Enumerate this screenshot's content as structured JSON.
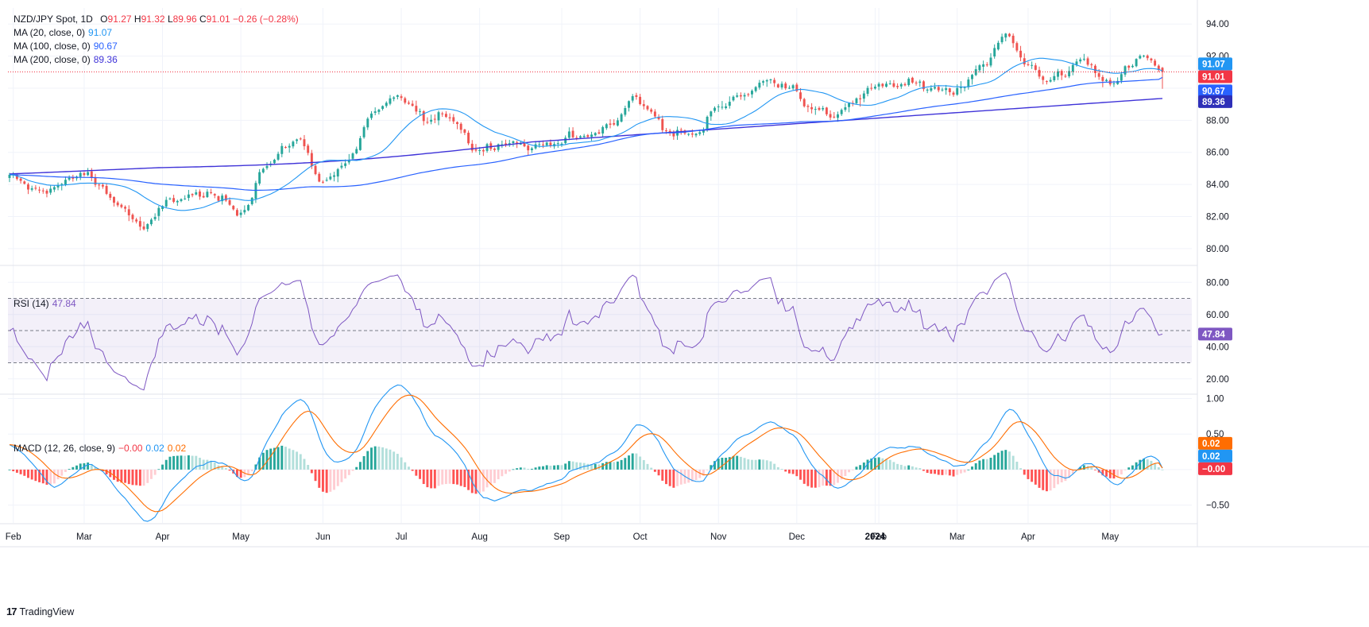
{
  "chart_data": {
    "type": "candlestick",
    "symbol_label": "NZD/JPY Spot, 1D",
    "ohlc": {
      "o_label": "O",
      "o": "91.27",
      "h_label": "H",
      "h": "91.32",
      "l_label": "L",
      "l": "89.96",
      "c_label": "C",
      "c": "91.01",
      "change": "−0.26 (−0.28%)"
    },
    "moving_averages": [
      {
        "label": "MA (20, close, 0)",
        "value": "91.07",
        "color": "#2196f3",
        "badge_color": "#2196f3"
      },
      {
        "label": "MA (100, close, 0)",
        "value": "90.67",
        "color": "#2962ff",
        "badge_color": "#2962ff"
      },
      {
        "label": "MA (200, close, 0)",
        "value": "89.36",
        "color": "#3f33d8",
        "badge_color": "#2e2fb8"
      }
    ],
    "last_price_badge": {
      "value": "91.01",
      "color": "#f23645"
    },
    "price_axis": {
      "ticks": [
        "94.00",
        "92.00",
        "88.00",
        "86.00",
        "84.00",
        "82.00",
        "80.00"
      ],
      "range": [
        79,
        95
      ]
    },
    "x_axis": {
      "ticks": [
        "Feb",
        "Mar",
        "Apr",
        "May",
        "Jun",
        "Jul",
        "Aug",
        "Sep",
        "Oct",
        "Nov",
        "Dec",
        "2024",
        "Feb",
        "Mar",
        "Apr",
        "May"
      ]
    },
    "price_anchors": [
      [
        "Jan 31",
        84.4
      ],
      [
        "Feb 10",
        83.6
      ],
      [
        "Feb 20",
        84.0
      ],
      [
        "Mar 1",
        84.6
      ],
      [
        "Mar 8",
        83.8
      ],
      [
        "Mar 15",
        82.6
      ],
      [
        "Mar 24",
        81.2
      ],
      [
        "Apr 4",
        83.1
      ],
      [
        "Apr 14",
        83.3
      ],
      [
        "Apr 24",
        83.0
      ],
      [
        "Apr 30",
        82.4
      ],
      [
        "May 10",
        85.2
      ],
      [
        "May 22",
        86.8
      ],
      [
        "Jun 1",
        84.3
      ],
      [
        "Jun 10",
        85.2
      ],
      [
        "Jun 20",
        88.3
      ],
      [
        "Jul 1",
        89.3
      ],
      [
        "Jul 12",
        87.9
      ],
      [
        "Jul 20",
        88.3
      ],
      [
        "Jul 31",
        86.2
      ],
      [
        "Aug 10",
        86.8
      ],
      [
        "Aug 22",
        86.3
      ],
      [
        "Sep 1",
        86.9
      ],
      [
        "Sep 10",
        86.8
      ],
      [
        "Sep 22",
        87.9
      ],
      [
        "Sep 29",
        89.4
      ],
      [
        "Oct 6",
        88.4
      ],
      [
        "Oct 14",
        87.2
      ],
      [
        "Oct 24",
        87.1
      ],
      [
        "Oct 31",
        88.9
      ],
      [
        "Nov 10",
        89.7
      ],
      [
        "Nov 20",
        90.4
      ],
      [
        "Nov 29",
        90.3
      ],
      [
        "Dec 7",
        88.6
      ],
      [
        "Dec 14",
        88.2
      ],
      [
        "Dec 22",
        89.2
      ],
      [
        "Dec 31",
        89.9
      ],
      [
        "Jan 10",
        90.2
      ],
      [
        "Jan 20",
        90.1
      ],
      [
        "Jan 31",
        89.9
      ],
      [
        "Feb 10",
        91.5
      ],
      [
        "Feb 20",
        93.2
      ],
      [
        "Feb 27",
        91.6
      ],
      [
        "Mar 7",
        90.7
      ],
      [
        "Mar 14",
        90.7
      ],
      [
        "Mar 20",
        91.8
      ],
      [
        "Mar 31",
        90.5
      ],
      [
        "Apr 8",
        91.2
      ],
      [
        "Apr 14",
        91.9
      ],
      [
        "Apr 21",
        91.01
      ]
    ],
    "rsi": {
      "label": "RSI (14)",
      "value": "47.84",
      "color": "#7e57c2",
      "ticks": [
        "80.00",
        "60.00",
        "40.00",
        "20.00"
      ],
      "range": [
        11,
        90
      ],
      "band": [
        30,
        70
      ],
      "mid": 50
    },
    "macd": {
      "label": "MACD (12, 26, close, 9)",
      "hist_value": "−0.00",
      "macd_value": "0.02",
      "signal_value": "0.02",
      "hist_color": "#f23645",
      "macd_color": "#2196f3",
      "signal_color": "#ff6d00",
      "ticks": [
        "1.00",
        "0.50",
        "−0.50"
      ],
      "range": [
        -0.75,
        1.05
      ],
      "badges": [
        {
          "value": "0.02",
          "color": "#ff6d00"
        },
        {
          "value": "0.02",
          "color": "#2196f3"
        },
        {
          "value": "−0.00",
          "color": "#f23645"
        }
      ]
    }
  },
  "branding": {
    "logo": "17",
    "text": "TradingView"
  }
}
